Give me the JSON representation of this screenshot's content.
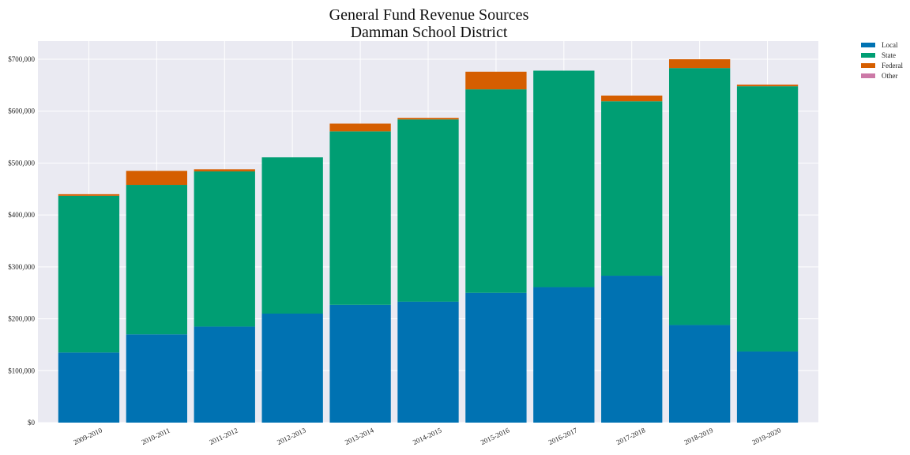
{
  "chart_data": {
    "type": "bar",
    "stacked": true,
    "title": [
      "General Fund Revenue Sources",
      "Damman School District"
    ],
    "xlabel": "",
    "ylabel": "",
    "categories": [
      "2009-2010",
      "2010-2011",
      "2011-2012",
      "2012-2013",
      "2013-2014",
      "2014-2015",
      "2015-2016",
      "2016-2017",
      "2017-2018",
      "2018-2019",
      "2019-2020"
    ],
    "series": [
      {
        "name": "Local",
        "color": "#0072b2",
        "values": [
          135000,
          170000,
          185000,
          210000,
          227000,
          233000,
          250000,
          261000,
          283000,
          188000,
          137000
        ]
      },
      {
        "name": "State",
        "color": "#009e73",
        "values": [
          302000,
          288000,
          299000,
          301000,
          334000,
          351000,
          392000,
          417000,
          336000,
          495000,
          511000
        ]
      },
      {
        "name": "Federal",
        "color": "#d55e00",
        "values": [
          3000,
          27000,
          4000,
          0,
          15000,
          3000,
          34000,
          0,
          11000,
          17000,
          3000
        ]
      },
      {
        "name": "Other",
        "color": "#cc79a7",
        "values": [
          0,
          0,
          0,
          0,
          0,
          0,
          0,
          0,
          0,
          0,
          0
        ]
      }
    ],
    "ylim": [
      0,
      735000
    ],
    "yticks": [
      0,
      100000,
      200000,
      300000,
      400000,
      500000,
      600000,
      700000
    ],
    "ytick_labels": [
      "$0",
      "$100,000",
      "$200,000",
      "$300,000",
      "$400,000",
      "$500,000",
      "$600,000",
      "$700,000"
    ],
    "grid": true,
    "legend_position": "outside-top-right",
    "background": "#eaeaf2"
  }
}
